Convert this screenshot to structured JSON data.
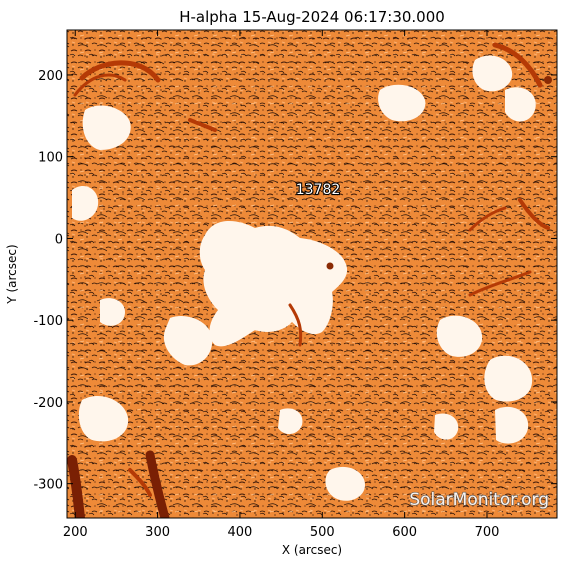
{
  "title": "H-alpha 15-Aug-2024 06:17:30.000",
  "x_axis": {
    "label": "X (arcsec)",
    "range": [
      190,
      785
    ],
    "ticks": [
      200,
      300,
      400,
      500,
      600,
      700
    ],
    "tick_labels": [
      "200",
      "300",
      "400",
      "500",
      "600",
      "700"
    ]
  },
  "y_axis": {
    "label": "Y (arcsec)",
    "range": [
      -342,
      255
    ],
    "ticks": [
      -300,
      -200,
      -100,
      0,
      100,
      200
    ],
    "tick_labels": [
      "-300",
      "-200",
      "-100",
      "0",
      "100",
      "200"
    ]
  },
  "active_region": {
    "label": "13782",
    "x": 505,
    "y": -33
  },
  "watermark": "SolarMonitor.org",
  "colors": {
    "chromosphere": "#f08c38",
    "bright_plage": "#fff6ec",
    "dark_filament": "#b53a06",
    "fibril_dark": "#2a1208"
  }
}
